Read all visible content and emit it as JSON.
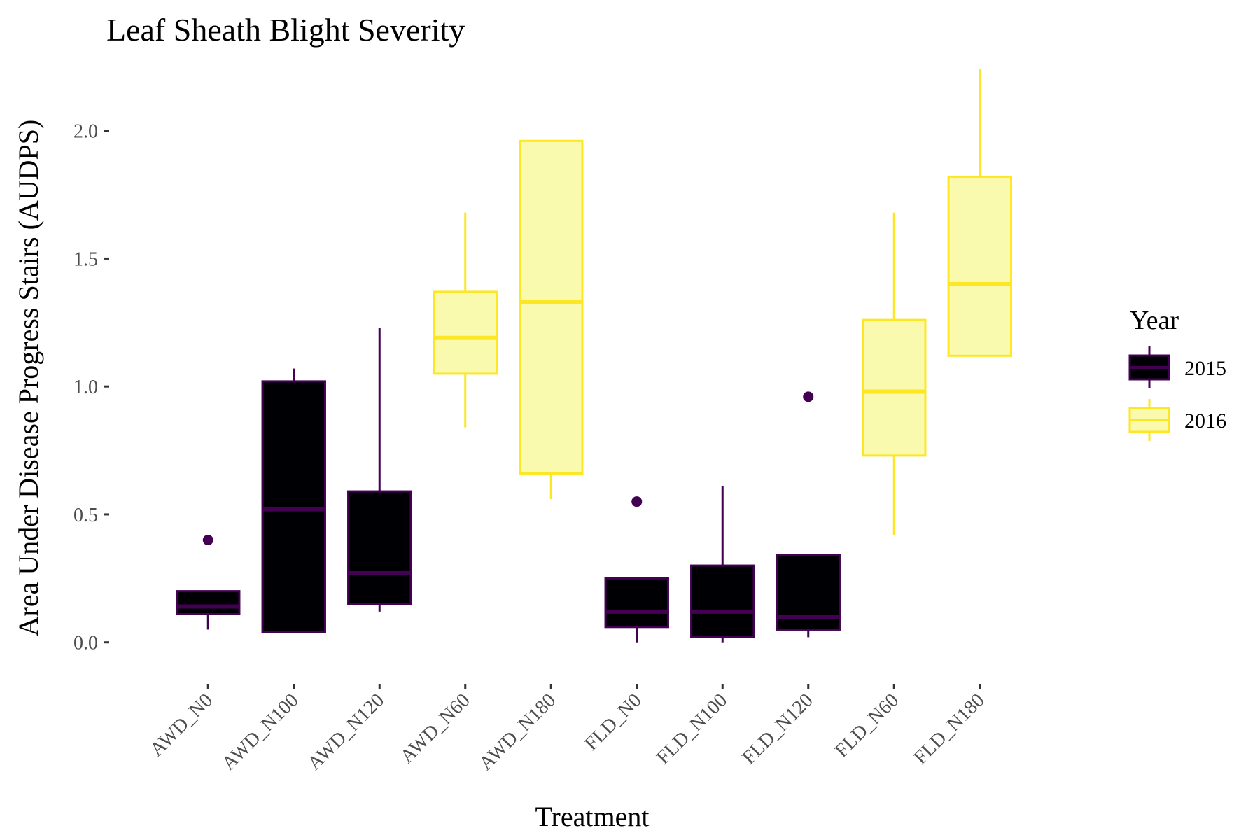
{
  "chart_data": {
    "type": "boxplot",
    "title": "Leaf Sheath Blight Severity",
    "xlabel": "Treatment",
    "ylabel": "Area Under Disease Progress Stairs (AUDPS)",
    "ylim": [
      -0.05,
      2.3
    ],
    "yticks": [
      "0.0",
      "0.5",
      "1.0",
      "1.5",
      "2.0"
    ],
    "categories": [
      "AWD_N0",
      "AWD_N100",
      "AWD_N120",
      "AWD_N60",
      "AWD_N180",
      "FLD_N0",
      "FLD_N100",
      "FLD_N120",
      "FLD_N60",
      "FLD_N180"
    ],
    "legend": {
      "title": "Year",
      "position": "right",
      "items": [
        {
          "label": "2015",
          "fill": "#000004",
          "stroke": "#440154"
        },
        {
          "label": "2016",
          "fill": "#FAFAAE",
          "stroke": "#FDE725"
        }
      ]
    },
    "grid": false,
    "boxes": [
      {
        "category": "AWD_N0",
        "year": "2015",
        "min": 0.05,
        "q1": 0.11,
        "median": 0.14,
        "q3": 0.2,
        "max": 0.2,
        "outliers": [
          0.4
        ]
      },
      {
        "category": "AWD_N100",
        "year": "2015",
        "min": 0.04,
        "q1": 0.04,
        "median": 0.52,
        "q3": 1.02,
        "max": 1.07,
        "outliers": []
      },
      {
        "category": "AWD_N120",
        "year": "2015",
        "min": 0.12,
        "q1": 0.15,
        "median": 0.27,
        "q3": 0.59,
        "max": 1.23,
        "outliers": []
      },
      {
        "category": "AWD_N60",
        "year": "2016",
        "min": 0.84,
        "q1": 1.05,
        "median": 1.19,
        "q3": 1.37,
        "max": 1.68,
        "outliers": []
      },
      {
        "category": "AWD_N180",
        "year": "2016",
        "min": 0.56,
        "q1": 0.66,
        "median": 1.33,
        "q3": 1.96,
        "max": 1.96,
        "outliers": []
      },
      {
        "category": "FLD_N0",
        "year": "2015",
        "min": 0.0,
        "q1": 0.06,
        "median": 0.12,
        "q3": 0.25,
        "max": 0.25,
        "outliers": [
          0.55
        ]
      },
      {
        "category": "FLD_N100",
        "year": "2015",
        "min": 0.0,
        "q1": 0.02,
        "median": 0.12,
        "q3": 0.3,
        "max": 0.61,
        "outliers": []
      },
      {
        "category": "FLD_N120",
        "year": "2015",
        "min": 0.02,
        "q1": 0.05,
        "median": 0.1,
        "q3": 0.34,
        "max": 0.34,
        "outliers": [
          0.96
        ]
      },
      {
        "category": "FLD_N60",
        "year": "2016",
        "min": 0.42,
        "q1": 0.73,
        "median": 0.98,
        "q3": 1.26,
        "max": 1.68,
        "outliers": []
      },
      {
        "category": "FLD_N180",
        "year": "2016",
        "min": 1.12,
        "q1": 1.12,
        "median": 1.4,
        "q3": 1.82,
        "max": 2.24,
        "outliers": []
      }
    ]
  }
}
